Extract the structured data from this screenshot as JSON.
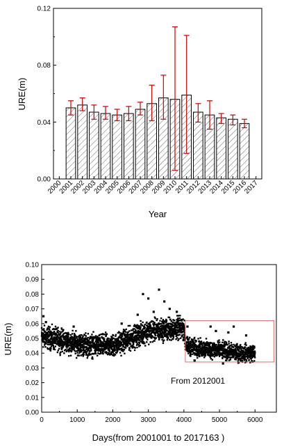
{
  "chart_data": [
    {
      "type": "bar",
      "xlabel": "Year",
      "ylabel": "URE(m)",
      "ylim": [
        0,
        0.12
      ],
      "yticks": [
        "0.00",
        "0.04",
        "0.08",
        "0.12"
      ],
      "xticks": [
        "2000",
        "2001",
        "2002",
        "2003",
        "2004",
        "2005",
        "2006",
        "2007",
        "2008",
        "2009",
        "2010",
        "2011",
        "2012",
        "2013",
        "2014",
        "2015",
        "2016",
        "2017"
      ],
      "bar_fill": "diagonal-hatch",
      "error_bar_color": "#cc0000",
      "bars": [
        {
          "x": 2001,
          "value": 0.05,
          "low": 0.045,
          "high": 0.055
        },
        {
          "x": 2002,
          "value": 0.052,
          "low": 0.048,
          "high": 0.057
        },
        {
          "x": 2003,
          "value": 0.047,
          "low": 0.042,
          "high": 0.052
        },
        {
          "x": 2004,
          "value": 0.046,
          "low": 0.042,
          "high": 0.051
        },
        {
          "x": 2005,
          "value": 0.045,
          "low": 0.041,
          "high": 0.049
        },
        {
          "x": 2006,
          "value": 0.046,
          "low": 0.041,
          "high": 0.051
        },
        {
          "x": 2007,
          "value": 0.049,
          "low": 0.045,
          "high": 0.054
        },
        {
          "x": 2008,
          "value": 0.053,
          "low": 0.041,
          "high": 0.066
        },
        {
          "x": 2009,
          "value": 0.057,
          "low": 0.042,
          "high": 0.073
        },
        {
          "x": 2010,
          "value": 0.056,
          "low": 0.006,
          "high": 0.107
        },
        {
          "x": 2011,
          "value": 0.059,
          "low": 0.018,
          "high": 0.101
        },
        {
          "x": 2012,
          "value": 0.047,
          "low": 0.04,
          "high": 0.053
        },
        {
          "x": 2013,
          "value": 0.045,
          "low": 0.035,
          "high": 0.055
        },
        {
          "x": 2014,
          "value": 0.043,
          "low": 0.039,
          "high": 0.046
        },
        {
          "x": 2015,
          "value": 0.042,
          "low": 0.038,
          "high": 0.045
        },
        {
          "x": 2016,
          "value": 0.039,
          "low": 0.036,
          "high": 0.042
        }
      ]
    },
    {
      "type": "scatter",
      "xlabel": "Days(from 2001001 to 2017163  )",
      "ylabel": "URE(m)",
      "xlim": [
        0,
        6600
      ],
      "ylim": [
        0,
        0.1
      ],
      "xticks": [
        "0",
        "1000",
        "2000",
        "3000",
        "4000",
        "5000",
        "6000"
      ],
      "yticks": [
        "0.00",
        "0.01",
        "0.02",
        "0.03",
        "0.04",
        "0.05",
        "0.06",
        "0.07",
        "0.08",
        "0.09",
        "0.10"
      ],
      "marker_color": "#000000",
      "annotation": {
        "text": "From 2012001",
        "box_color": "#e07070",
        "box_x_range": [
          4040,
          6530
        ],
        "box_y_range": [
          0.034,
          0.062
        ]
      },
      "trend": [
        {
          "x": 0,
          "y": 0.051
        },
        {
          "x": 500,
          "y": 0.049
        },
        {
          "x": 1000,
          "y": 0.046
        },
        {
          "x": 1500,
          "y": 0.045
        },
        {
          "x": 2000,
          "y": 0.045
        },
        {
          "x": 2500,
          "y": 0.05
        },
        {
          "x": 3000,
          "y": 0.055
        },
        {
          "x": 3500,
          "y": 0.056
        },
        {
          "x": 4000,
          "y": 0.057
        },
        {
          "x": 4050,
          "y": 0.045
        },
        {
          "x": 4500,
          "y": 0.043
        },
        {
          "x": 5000,
          "y": 0.042
        },
        {
          "x": 5500,
          "y": 0.04
        },
        {
          "x": 6000,
          "y": 0.04
        }
      ],
      "outliers": [
        {
          "x": 50,
          "y": 0.065
        },
        {
          "x": 120,
          "y": 0.061
        },
        {
          "x": 900,
          "y": 0.058
        },
        {
          "x": 2250,
          "y": 0.06
        },
        {
          "x": 2700,
          "y": 0.066
        },
        {
          "x": 2850,
          "y": 0.08
        },
        {
          "x": 3000,
          "y": 0.077
        },
        {
          "x": 3150,
          "y": 0.068
        },
        {
          "x": 3300,
          "y": 0.083
        },
        {
          "x": 3450,
          "y": 0.075
        },
        {
          "x": 3600,
          "y": 0.07
        },
        {
          "x": 3800,
          "y": 0.068
        },
        {
          "x": 4100,
          "y": 0.058
        },
        {
          "x": 4750,
          "y": 0.058
        },
        {
          "x": 4900,
          "y": 0.055
        },
        {
          "x": 5250,
          "y": 0.054
        },
        {
          "x": 5400,
          "y": 0.058
        },
        {
          "x": 5750,
          "y": 0.052
        },
        {
          "x": 4300,
          "y": 0.035
        },
        {
          "x": 5100,
          "y": 0.033
        }
      ]
    }
  ]
}
